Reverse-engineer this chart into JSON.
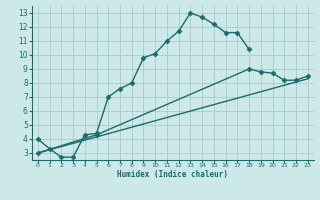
{
  "title": "",
  "xlabel": "Humidex (Indice chaleur)",
  "background_color": "#cde8e8",
  "line_color": "#1a6b6b",
  "grid_color": "#a8cbcb",
  "xlim": [
    -0.5,
    23.5
  ],
  "ylim": [
    2.5,
    13.5
  ],
  "xticks": [
    0,
    1,
    2,
    3,
    4,
    5,
    6,
    7,
    8,
    9,
    10,
    11,
    12,
    13,
    14,
    15,
    16,
    17,
    18,
    19,
    20,
    21,
    22,
    23
  ],
  "yticks": [
    3,
    4,
    5,
    6,
    7,
    8,
    9,
    10,
    11,
    12,
    13
  ],
  "line1_x": [
    0,
    1,
    2,
    3,
    4,
    5,
    6,
    7,
    8,
    9,
    10,
    11,
    12,
    13,
    14,
    15,
    16,
    17,
    18
  ],
  "line1_y": [
    4.0,
    3.3,
    2.7,
    2.7,
    4.3,
    4.4,
    7.0,
    7.6,
    8.0,
    9.8,
    10.1,
    11.0,
    11.7,
    13.0,
    12.7,
    12.2,
    11.6,
    11.6,
    10.4
  ],
  "line2_x": [
    0,
    23
  ],
  "line2_y": [
    3.0,
    8.3
  ],
  "line3_x": [
    0,
    5,
    18,
    19,
    20,
    21,
    22,
    23
  ],
  "line3_y": [
    3.0,
    4.3,
    9.0,
    8.8,
    8.7,
    8.2,
    8.2,
    8.5
  ],
  "marker": "D",
  "markersize": 2.5,
  "linewidth": 1.0
}
